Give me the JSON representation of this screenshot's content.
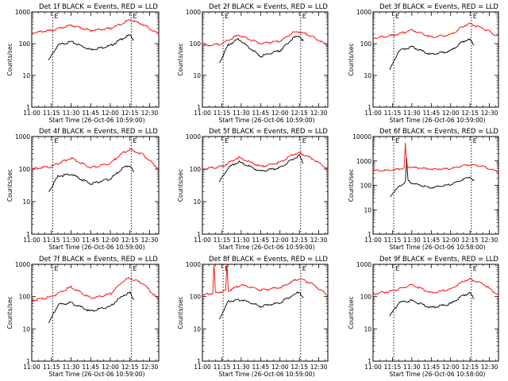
{
  "chart_data": [
    {
      "type": "line",
      "title": "Det 1f BLACK = Events, RED = LLD",
      "xlabel": "Start Time (26-Oct-06 10:59:00)",
      "ylabel": "Counts/sec",
      "yscale": "log",
      "ylim": [
        1,
        1000
      ],
      "xlim": [
        "11:00",
        "12:37"
      ],
      "x_ticks": [
        "11:00",
        "11:15",
        "11:30",
        "11:45",
        "12:00",
        "12:15",
        "12:30"
      ],
      "y_ticks": [
        "1",
        "10",
        "100",
        "1000"
      ],
      "markers": [
        {
          "time": "11:16",
          "label": "E"
        },
        {
          "time": "12:16",
          "label": "E"
        }
      ],
      "series": [
        {
          "color": "#000000",
          "time": [
            "11:13",
            "11:20",
            "11:30",
            "11:45",
            "12:00",
            "12:10",
            "12:15",
            "12:18"
          ],
          "values": [
            30,
            90,
            115,
            65,
            85,
            150,
            185,
            130
          ]
        },
        {
          "color": "#ff0000",
          "time": [
            "11:00",
            "11:15",
            "11:30",
            "11:45",
            "12:00",
            "12:10",
            "12:15",
            "12:25",
            "12:37"
          ],
          "values": [
            220,
            260,
            380,
            260,
            300,
            450,
            580,
            400,
            200
          ]
        }
      ]
    },
    {
      "type": "line",
      "title": "Det 2f BLACK = Events, RED = LLD",
      "xlabel": "Start Time (26-Oct-06 10:59:00)",
      "ylabel": "Counts/sec",
      "yscale": "log",
      "ylim": [
        1,
        1000
      ],
      "xlim": [
        "11:00",
        "12:37"
      ],
      "x_ticks": [
        "11:00",
        "11:15",
        "11:30",
        "11:45",
        "12:00",
        "12:15",
        "12:30"
      ],
      "y_ticks": [
        "1",
        "10",
        "100",
        "1000"
      ],
      "markers": [
        {
          "time": "11:16",
          "label": "E"
        },
        {
          "time": "12:16",
          "label": "E"
        }
      ],
      "series": [
        {
          "color": "#000000",
          "time": [
            "11:13",
            "11:20",
            "11:28",
            "11:45",
            "12:00",
            "12:10",
            "12:15",
            "12:18"
          ],
          "values": [
            25,
            90,
            140,
            40,
            60,
            150,
            180,
            120
          ]
        },
        {
          "color": "#ff0000",
          "time": [
            "11:00",
            "11:15",
            "11:28",
            "11:45",
            "12:00",
            "12:10",
            "12:15",
            "12:25",
            "12:37"
          ],
          "values": [
            85,
            100,
            190,
            100,
            120,
            220,
            240,
            170,
            85
          ]
        }
      ]
    },
    {
      "type": "line",
      "title": "Det 3f BLACK = Events, RED = LLD",
      "xlabel": "Start Time (26-Oct-06 10:59:00)",
      "ylabel": "Counts/sec",
      "yscale": "log",
      "ylim": [
        1,
        1000
      ],
      "xlim": [
        "11:00",
        "12:37"
      ],
      "x_ticks": [
        "11:00",
        "11:15",
        "11:30",
        "11:45",
        "12:00",
        "12:15",
        "12:30"
      ],
      "y_ticks": [
        "1",
        "10",
        "100",
        "1000"
      ],
      "markers": [
        {
          "time": "11:16",
          "label": "E"
        },
        {
          "time": "12:16",
          "label": "E"
        }
      ],
      "series": [
        {
          "color": "#000000",
          "time": [
            "11:13",
            "11:20",
            "11:30",
            "11:45",
            "12:00",
            "12:10",
            "12:15",
            "12:18"
          ],
          "values": [
            15,
            60,
            80,
            45,
            60,
            120,
            135,
            90
          ]
        },
        {
          "color": "#ff0000",
          "time": [
            "11:00",
            "11:15",
            "11:30",
            "11:45",
            "12:00",
            "12:10",
            "12:15",
            "12:25",
            "12:37"
          ],
          "values": [
            150,
            180,
            270,
            160,
            190,
            360,
            430,
            300,
            170
          ]
        }
      ]
    },
    {
      "type": "line",
      "title": "Det 4f BLACK = Events, RED = LLD",
      "xlabel": "Start Time (26-Oct-06 10:59:00)",
      "ylabel": "Counts/sec",
      "yscale": "log",
      "ylim": [
        1,
        1000
      ],
      "xlim": [
        "11:00",
        "12:37"
      ],
      "x_ticks": [
        "11:00",
        "11:15",
        "11:30",
        "11:45",
        "12:00",
        "12:15",
        "12:30"
      ],
      "y_ticks": [
        "1",
        "10",
        "100",
        "1000"
      ],
      "markers": [
        {
          "time": "11:16",
          "label": "E"
        },
        {
          "time": "12:16",
          "label": "E"
        }
      ],
      "series": [
        {
          "color": "#000000",
          "time": [
            "11:13",
            "11:20",
            "11:30",
            "11:45",
            "12:00",
            "12:10",
            "12:15",
            "12:18"
          ],
          "values": [
            20,
            60,
            70,
            35,
            50,
            110,
            130,
            80
          ]
        },
        {
          "color": "#ff0000",
          "time": [
            "11:00",
            "11:15",
            "11:30",
            "11:45",
            "12:00",
            "12:10",
            "12:15",
            "12:25",
            "12:37"
          ],
          "values": [
            100,
            120,
            220,
            110,
            150,
            330,
            400,
            280,
            100
          ]
        }
      ]
    },
    {
      "type": "line",
      "title": "Det 5f BLACK = Events, RED = LLD",
      "xlabel": "Start Time (26-Oct-06 10:59:00)",
      "ylabel": "Counts/sec",
      "yscale": "log",
      "ylim": [
        1,
        1000
      ],
      "xlim": [
        "11:00",
        "12:37"
      ],
      "x_ticks": [
        "11:00",
        "11:15",
        "11:30",
        "11:45",
        "12:00",
        "12:15",
        "12:30"
      ],
      "y_ticks": [
        "1",
        "10",
        "100",
        "1000"
      ],
      "markers": [
        {
          "time": "11:16",
          "label": "E"
        },
        {
          "time": "12:16",
          "label": "E"
        }
      ],
      "series": [
        {
          "color": "#000000",
          "time": [
            "11:13",
            "11:20",
            "11:28",
            "11:45",
            "12:00",
            "12:10",
            "12:15",
            "12:18"
          ],
          "values": [
            40,
            110,
            170,
            85,
            110,
            200,
            260,
            150
          ]
        },
        {
          "color": "#ff0000",
          "time": [
            "11:00",
            "11:15",
            "11:28",
            "11:45",
            "12:00",
            "12:10",
            "12:15",
            "12:25",
            "12:37"
          ],
          "values": [
            100,
            120,
            230,
            120,
            160,
            280,
            320,
            210,
            100
          ]
        }
      ]
    },
    {
      "type": "line",
      "title": "Det 6f BLACK = Events, RED = LLD",
      "xlabel": "Start Time (26-Oct-06 10:58:00)",
      "ylabel": "Counts/sec",
      "yscale": "log",
      "ylim": [
        1,
        10000
      ],
      "xlim": [
        "11:00",
        "12:37"
      ],
      "x_ticks": [
        "11:00",
        "11:15",
        "11:30",
        "11:45",
        "12:00",
        "12:15",
        "12:30"
      ],
      "y_ticks": [
        "1",
        "10",
        "100",
        "1000",
        "10000"
      ],
      "markers": [
        {
          "time": "11:16",
          "label": "E"
        },
        {
          "time": "12:16",
          "label": "E"
        }
      ],
      "series": [
        {
          "color": "#000000",
          "time": [
            "11:13",
            "11:20",
            "11:25",
            "11:26",
            "11:27",
            "11:30",
            "11:45",
            "12:00",
            "12:10",
            "12:15",
            "12:18"
          ],
          "values": [
            35,
            90,
            130,
            1200,
            160,
            120,
            80,
            110,
            180,
            220,
            150
          ]
        },
        {
          "color": "#ff0000",
          "time": [
            "11:00",
            "11:15",
            "11:24",
            "11:25",
            "11:26",
            "11:30",
            "11:45",
            "12:00",
            "12:10",
            "12:15",
            "12:25",
            "12:37"
          ],
          "values": [
            400,
            420,
            500,
            5000,
            600,
            550,
            460,
            480,
            650,
            700,
            600,
            350
          ]
        }
      ]
    },
    {
      "type": "line",
      "title": "Det 7f BLACK = Events, RED = LLD",
      "xlabel": "Start Time (26-Oct-06 10:59:00)",
      "ylabel": "Counts/sec",
      "yscale": "log",
      "ylim": [
        1,
        1000
      ],
      "xlim": [
        "11:00",
        "12:37"
      ],
      "x_ticks": [
        "11:00",
        "11:15",
        "11:30",
        "11:45",
        "12:00",
        "12:15",
        "12:30"
      ],
      "y_ticks": [
        "1",
        "10",
        "100",
        "1000"
      ],
      "markers": [
        {
          "time": "11:16",
          "label": "E"
        },
        {
          "time": "12:16",
          "label": "E"
        }
      ],
      "series": [
        {
          "color": "#000000",
          "time": [
            "11:13",
            "11:20",
            "11:30",
            "11:45",
            "12:00",
            "12:10",
            "12:15",
            "12:18"
          ],
          "values": [
            15,
            55,
            65,
            35,
            50,
            110,
            130,
            80
          ]
        },
        {
          "color": "#ff0000",
          "time": [
            "11:00",
            "11:15",
            "11:30",
            "11:45",
            "12:00",
            "12:10",
            "12:15",
            "12:25",
            "12:37"
          ],
          "values": [
            75,
            100,
            200,
            90,
            120,
            310,
            380,
            250,
            80
          ]
        }
      ]
    },
    {
      "type": "line",
      "title": "Det 8f BLACK = Events, RED = LLD",
      "xlabel": "Start Time (26-Oct-06 10:59:00)",
      "ylabel": "Counts/sec",
      "yscale": "log",
      "ylim": [
        1,
        1000
      ],
      "xlim": [
        "11:00",
        "12:37"
      ],
      "x_ticks": [
        "11:00",
        "11:15",
        "11:30",
        "11:45",
        "12:00",
        "12:15",
        "12:30"
      ],
      "y_ticks": [
        "1",
        "10",
        "100",
        "1000"
      ],
      "markers": [
        {
          "time": "11:16",
          "label": "E"
        },
        {
          "time": "12:16",
          "label": "E"
        }
      ],
      "series": [
        {
          "color": "#000000",
          "time": [
            "11:13",
            "11:20",
            "11:30",
            "11:45",
            "12:00",
            "12:10",
            "12:15",
            "12:18"
          ],
          "values": [
            20,
            70,
            80,
            50,
            65,
            110,
            140,
            90
          ]
        },
        {
          "color": "#ff0000",
          "time": [
            "11:00",
            "11:08",
            "11:09",
            "11:10",
            "11:18",
            "11:19",
            "11:20",
            "11:30",
            "11:45",
            "12:00",
            "12:10",
            "12:15",
            "12:25",
            "12:37"
          ],
          "values": [
            110,
            130,
            1000,
            130,
            150,
            1000,
            150,
            230,
            160,
            190,
            300,
            360,
            250,
            110
          ]
        }
      ]
    },
    {
      "type": "line",
      "title": "Det 9f BLACK = Events, RED = LLD",
      "xlabel": "Start Time (26-Oct-06 10:58:00)",
      "ylabel": "Counts/sec",
      "yscale": "log",
      "ylim": [
        1,
        1000
      ],
      "xlim": [
        "11:00",
        "12:37"
      ],
      "x_ticks": [
        "11:00",
        "11:15",
        "11:30",
        "11:45",
        "12:00",
        "12:15",
        "12:30"
      ],
      "y_ticks": [
        "1",
        "10",
        "100",
        "1000"
      ],
      "markers": [
        {
          "time": "11:16",
          "label": "E"
        },
        {
          "time": "12:16",
          "label": "E"
        }
      ],
      "series": [
        {
          "color": "#000000",
          "time": [
            "11:13",
            "11:20",
            "11:30",
            "11:45",
            "12:00",
            "12:10",
            "12:15",
            "12:18"
          ],
          "values": [
            25,
            65,
            75,
            45,
            60,
            110,
            130,
            85
          ]
        },
        {
          "color": "#ff0000",
          "time": [
            "11:00",
            "11:15",
            "11:30",
            "11:45",
            "12:00",
            "12:10",
            "12:15",
            "12:25",
            "12:37"
          ],
          "values": [
            120,
            150,
            230,
            130,
            170,
            300,
            350,
            250,
            110
          ]
        }
      ]
    }
  ]
}
